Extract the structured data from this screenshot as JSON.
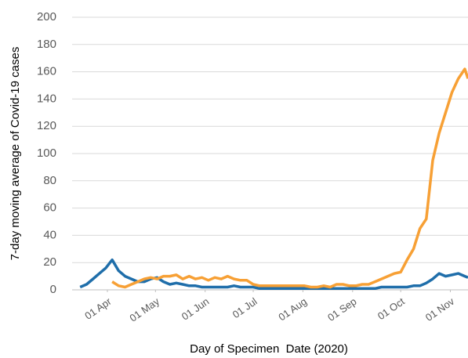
{
  "chart_data": {
    "type": "line",
    "y_label": "7-day moving average of Covid-19 cases",
    "x_label": "Day of Specimen  Date (2020)",
    "x": [
      "2020-03-15",
      "2020-03-19",
      "2020-03-23",
      "2020-03-27",
      "2020-03-31",
      "2020-04-04",
      "2020-04-08",
      "2020-04-12",
      "2020-04-16",
      "2020-04-20",
      "2020-04-24",
      "2020-04-28",
      "2020-05-02",
      "2020-05-06",
      "2020-05-10",
      "2020-05-14",
      "2020-05-18",
      "2020-05-22",
      "2020-05-26",
      "2020-05-30",
      "2020-06-03",
      "2020-06-07",
      "2020-06-11",
      "2020-06-15",
      "2020-06-19",
      "2020-06-23",
      "2020-06-27",
      "2020-07-01",
      "2020-07-05",
      "2020-07-09",
      "2020-07-13",
      "2020-07-17",
      "2020-07-21",
      "2020-07-25",
      "2020-07-29",
      "2020-08-02",
      "2020-08-06",
      "2020-08-10",
      "2020-08-14",
      "2020-08-18",
      "2020-08-22",
      "2020-08-26",
      "2020-08-30",
      "2020-09-03",
      "2020-09-07",
      "2020-09-11",
      "2020-09-15",
      "2020-09-19",
      "2020-09-23",
      "2020-09-27",
      "2020-10-01",
      "2020-10-05",
      "2020-10-09",
      "2020-10-13",
      "2020-10-17",
      "2020-10-21",
      "2020-10-25",
      "2020-10-29",
      "2020-11-02",
      "2020-11-06",
      "2020-11-10",
      "2020-11-12"
    ],
    "series": [
      {
        "color": "#1f6eaa",
        "values": [
          2,
          4,
          8,
          12,
          16,
          22,
          14,
          10,
          8,
          6,
          6,
          8,
          9,
          6,
          4,
          5,
          4,
          3,
          3,
          2,
          2,
          2,
          2,
          2,
          3,
          2,
          2,
          2,
          1,
          1,
          1,
          1,
          1,
          1,
          1,
          1,
          1,
          1,
          1,
          1,
          1,
          1,
          1,
          1,
          1,
          1,
          1,
          2,
          2,
          2,
          2,
          2,
          3,
          3,
          5,
          8,
          12,
          10,
          11,
          12,
          10,
          9
        ]
      },
      {
        "color": "#f7a035",
        "values": [
          null,
          null,
          null,
          null,
          null,
          6,
          3,
          2,
          4,
          6,
          8,
          9,
          8,
          10,
          10,
          11,
          8,
          10,
          8,
          9,
          7,
          9,
          8,
          10,
          8,
          7,
          7,
          4,
          3,
          3,
          3,
          3,
          3,
          3,
          3,
          3,
          2,
          2,
          3,
          2,
          4,
          4,
          3,
          3,
          4,
          4,
          6,
          8,
          10,
          12,
          13,
          22,
          30,
          45,
          52,
          95,
          115,
          130,
          145,
          155,
          162,
          155
        ]
      }
    ],
    "xlim": [
      "2020-03-10",
      "2020-11-12"
    ],
    "xticks": [
      {
        "value": "2020-04-01",
        "label": "01 Apr"
      },
      {
        "value": "2020-05-01",
        "label": "01 May"
      },
      {
        "value": "2020-06-01",
        "label": "01 Jun"
      },
      {
        "value": "2020-07-01",
        "label": "01 Jul"
      },
      {
        "value": "2020-08-01",
        "label": "01 Aug"
      },
      {
        "value": "2020-09-01",
        "label": "01 Sep"
      },
      {
        "value": "2020-10-01",
        "label": "01 Oct"
      },
      {
        "value": "2020-11-01",
        "label": "01 Nov"
      }
    ],
    "ylim": [
      0,
      200
    ],
    "yticks": [
      0,
      20,
      40,
      60,
      80,
      100,
      120,
      140,
      160,
      180,
      200
    ],
    "grid": true
  }
}
